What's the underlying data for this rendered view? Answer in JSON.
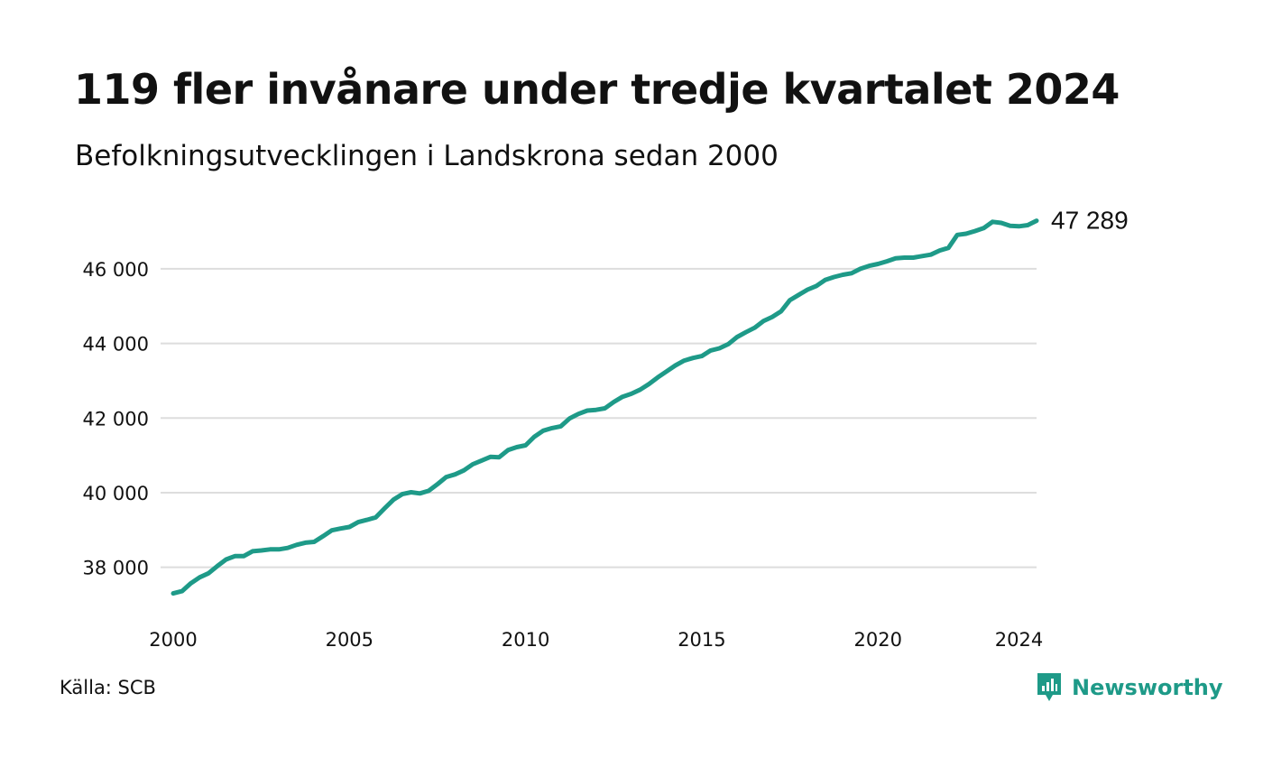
{
  "title": "119 fler invånare under tredje kvartalet 2024",
  "subtitle": "Befolkningsutvecklingen i Landskrona sedan 2000",
  "source": "Källa: SCB",
  "logo": {
    "text": "Newsworthy",
    "icon": "newsworthy-logo-icon"
  },
  "colors": {
    "line": "#1e9a88",
    "grid": "#dddddd",
    "text": "#111111",
    "logo": "#1e9a88"
  },
  "chart_data": {
    "type": "line",
    "title": "119 fler invånare under tredje kvartalet 2024",
    "subtitle": "Befolkningsutvecklingen i Landskrona sedan 2000",
    "xlabel": "",
    "ylabel": "",
    "xlim": [
      2000,
      2024.5
    ],
    "ylim": [
      37000,
      47400
    ],
    "x_ticks": [
      2000,
      2005,
      2010,
      2015,
      2020,
      2024
    ],
    "x_tick_labels": [
      "2000",
      "2005",
      "2010",
      "2015",
      "2020",
      "2024"
    ],
    "y_ticks": [
      38000,
      40000,
      42000,
      44000,
      46000
    ],
    "y_tick_labels": [
      "38 000",
      "40 000",
      "42 000",
      "44 000",
      "46 000"
    ],
    "grid": "horizontal",
    "legend": "none",
    "end_label": "47 289",
    "series": [
      {
        "x": [
          2000.0,
          2000.25,
          2000.5,
          2000.75,
          2001.0,
          2001.25,
          2001.5,
          2001.75,
          2002.0,
          2002.25,
          2002.5,
          2002.75,
          2003.0,
          2003.25,
          2003.5,
          2003.75,
          2004.0,
          2004.25,
          2004.5,
          2004.75,
          2005.0,
          2005.25,
          2005.5,
          2005.75,
          2006.0,
          2006.25,
          2006.5,
          2006.75,
          2007.0,
          2007.25,
          2007.5,
          2007.75,
          2008.0,
          2008.25,
          2008.5,
          2008.75,
          2009.0,
          2009.25,
          2009.5,
          2009.75,
          2010.0,
          2010.25,
          2010.5,
          2010.75,
          2011.0,
          2011.25,
          2011.5,
          2011.75,
          2012.0,
          2012.25,
          2012.5,
          2012.75,
          2013.0,
          2013.25,
          2013.5,
          2013.75,
          2014.0,
          2014.25,
          2014.5,
          2014.75,
          2015.0,
          2015.25,
          2015.5,
          2015.75,
          2016.0,
          2016.25,
          2016.5,
          2016.75,
          2017.0,
          2017.25,
          2017.5,
          2017.75,
          2018.0,
          2018.25,
          2018.5,
          2018.75,
          2019.0,
          2019.25,
          2019.5,
          2019.75,
          2020.0,
          2020.25,
          2020.5,
          2020.75,
          2021.0,
          2021.25,
          2021.5,
          2021.75,
          2022.0,
          2022.25,
          2022.5,
          2022.75,
          2023.0,
          2023.25,
          2023.5,
          2023.75,
          2024.0,
          2024.25,
          2024.5
        ],
        "values": [
          37300,
          37360,
          37570,
          37730,
          37840,
          38030,
          38210,
          38300,
          38300,
          38430,
          38450,
          38480,
          38480,
          38520,
          38600,
          38660,
          38680,
          38830,
          38990,
          39040,
          39080,
          39210,
          39270,
          39340,
          39580,
          39810,
          39960,
          40010,
          39980,
          40050,
          40230,
          40420,
          40490,
          40600,
          40760,
          40860,
          40960,
          40950,
          41140,
          41220,
          41270,
          41500,
          41660,
          41730,
          41780,
          41990,
          42110,
          42200,
          42220,
          42260,
          42430,
          42570,
          42650,
          42760,
          42910,
          43090,
          43250,
          43410,
          43540,
          43610,
          43660,
          43810,
          43870,
          43980,
          44170,
          44300,
          44420,
          44600,
          44710,
          44860,
          45160,
          45300,
          45440,
          45540,
          45700,
          45780,
          45840,
          45880,
          46000,
          46080,
          46130,
          46200,
          46280,
          46300,
          46300,
          46340,
          46380,
          46490,
          46560,
          46910,
          46940,
          47010,
          47090,
          47260,
          47230,
          47150,
          47140,
          47170,
          47289
        ]
      }
    ]
  }
}
